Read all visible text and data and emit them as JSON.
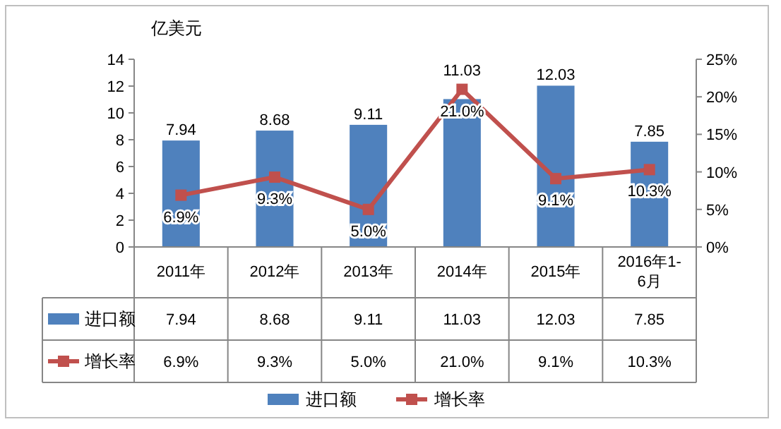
{
  "chart_data": {
    "type": "bar",
    "ylabel": "亿美元",
    "categories": [
      "2011年",
      "2012年",
      "2013年",
      "2014年",
      "2015年",
      "2016年1-6月"
    ],
    "ylim": [
      0,
      14
    ],
    "yticks": [
      0,
      2,
      4,
      6,
      8,
      10,
      12,
      14
    ],
    "y2lim": [
      0,
      25
    ],
    "y2ticks": [
      {
        "value": 0,
        "label": "0%"
      },
      {
        "value": 5,
        "label": "5%"
      },
      {
        "value": 10,
        "label": "10%"
      },
      {
        "value": 15,
        "label": "15%"
      },
      {
        "value": 20,
        "label": "20%"
      },
      {
        "value": 25,
        "label": "25%"
      }
    ],
    "series": [
      {
        "name": "进口额",
        "color": "#4f81bd",
        "values": [
          7.94,
          8.68,
          9.11,
          11.03,
          12.03,
          7.85
        ],
        "value_labels": [
          "7.94",
          "8.68",
          "9.11",
          "11.03",
          "12.03",
          "7.85"
        ]
      },
      {
        "name": "增长率",
        "type": "line",
        "axis": "y2",
        "color": "#c0504d",
        "values": [
          6.9,
          9.3,
          5.0,
          21.0,
          9.1,
          10.3
        ],
        "value_labels": [
          "6.9%",
          "9.3%",
          "5.0%",
          "21.0%",
          "9.1%",
          "10.3%"
        ]
      }
    ],
    "marker": "square",
    "legend": "bottom"
  }
}
